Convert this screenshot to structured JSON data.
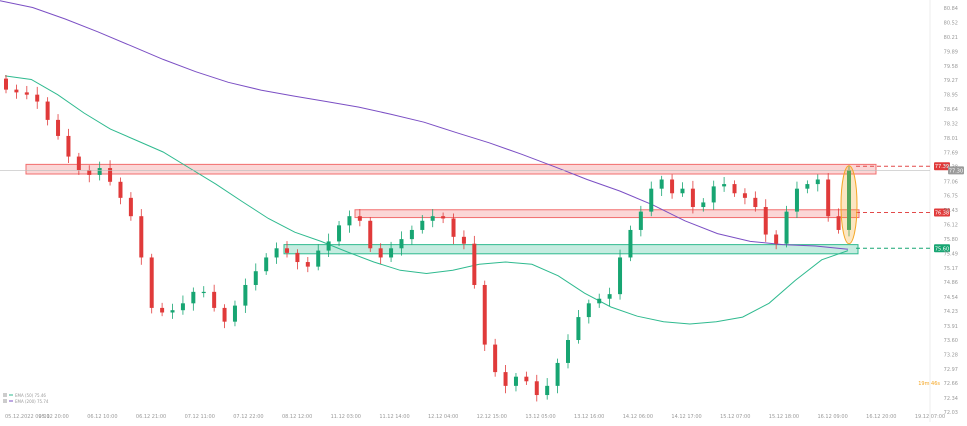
{
  "chart_data": {
    "type": "candlestick",
    "y_axis": {
      "ticks": [
        "80.84",
        "80.52",
        "80.21",
        "79.89",
        "79.58",
        "79.27",
        "78.95",
        "78.64",
        "78.32",
        "78.01",
        "77.69",
        "77.38",
        "77.06",
        "76.75",
        "76.43",
        "76.12",
        "75.80",
        "75.49",
        "75.17",
        "74.86",
        "74.54",
        "74.23",
        "73.91",
        "73.60",
        "73.28",
        "72.97",
        "72.66",
        "72.34",
        "72.03"
      ],
      "range": [
        72.03,
        80.84
      ]
    },
    "x_axis": {
      "ticks": [
        "05.12.2022 09:00",
        "05.12 20:00",
        "06.12 10:00",
        "06.12 21:00",
        "07.12 11:00",
        "07.12 22:00",
        "08.12 12:00",
        "11.12 03:00",
        "11.12 14:00",
        "12.12 04:00",
        "12.12 15:00",
        "13.12 05:00",
        "13.12 16:00",
        "14.12 06:00",
        "14.12 17:00",
        "15.12 07:00",
        "15.12 18:00",
        "16.12 09:00",
        "16.12 20:00",
        "19.12 07:00"
      ]
    },
    "price_labels": {
      "upper": "77.39",
      "current": "77.30",
      "middle": "76.38",
      "lower": "75.60"
    },
    "countdown": "19m 46s",
    "legend": [
      {
        "label": "EMA (50) 75.46",
        "color": "#2fba8f"
      },
      {
        "label": "EMA (200) 75.74",
        "color": "#7b4fc4"
      }
    ],
    "zones": [
      {
        "name": "resistance-upper",
        "low": 77.22,
        "high": 77.43,
        "color": "#f26d6d"
      },
      {
        "name": "resistance-middle",
        "low": 76.27,
        "high": 76.44,
        "color": "#f26d6d"
      },
      {
        "name": "support-lower",
        "low": 75.48,
        "high": 75.68,
        "color": "#2fba8f"
      }
    ],
    "series": [
      {
        "name": "EMA (50)",
        "color": "#2fba8f",
        "values": [
          79.36,
          79.28,
          78.95,
          78.55,
          78.2,
          77.95,
          77.7,
          77.35,
          77.0,
          76.62,
          76.25,
          75.95,
          75.75,
          75.52,
          75.3,
          75.12,
          75.05,
          75.12,
          75.25,
          75.3,
          75.25,
          75.0,
          74.62,
          74.32,
          74.12,
          74.0,
          73.95,
          74.0,
          74.1,
          74.4,
          74.9,
          75.35,
          75.55
        ]
      },
      {
        "name": "EMA (200)",
        "color": "#7b4fc4",
        "values": [
          81.0,
          80.85,
          80.6,
          80.32,
          80.02,
          79.72,
          79.45,
          79.22,
          79.05,
          78.92,
          78.8,
          78.68,
          78.52,
          78.35,
          78.12,
          77.9,
          77.65,
          77.38,
          77.1,
          76.85,
          76.55,
          76.2,
          75.92,
          75.75,
          75.68,
          75.65,
          75.58
        ]
      },
      {
        "name": "Candles",
        "values": [
          79.06,
          79.0,
          78.95,
          78.8,
          78.4,
          78.05,
          77.6,
          77.3,
          77.2,
          77.35,
          77.05,
          76.7,
          76.3,
          75.4,
          74.3,
          74.2,
          74.25,
          74.4,
          74.65,
          74.65,
          74.3,
          74.0,
          74.35,
          74.8,
          75.1,
          75.4,
          75.6,
          75.5,
          75.3,
          75.2,
          75.55,
          75.75,
          76.1,
          76.3,
          76.2,
          75.6,
          75.4,
          75.6,
          75.8,
          76.0,
          76.2,
          76.3,
          76.25,
          75.85,
          75.7,
          74.8,
          73.5,
          72.9,
          72.6,
          72.8,
          72.7,
          72.4,
          72.6,
          73.1,
          73.6,
          74.1,
          74.4,
          74.5,
          74.6,
          75.4,
          76.0,
          76.4,
          76.9,
          77.1,
          76.8,
          76.9,
          76.5,
          76.6,
          76.95,
          77.0,
          76.8,
          76.7,
          76.5,
          75.9,
          75.7,
          76.4,
          76.9,
          77.0,
          77.1,
          76.3,
          76.0,
          77.3
        ]
      }
    ]
  }
}
